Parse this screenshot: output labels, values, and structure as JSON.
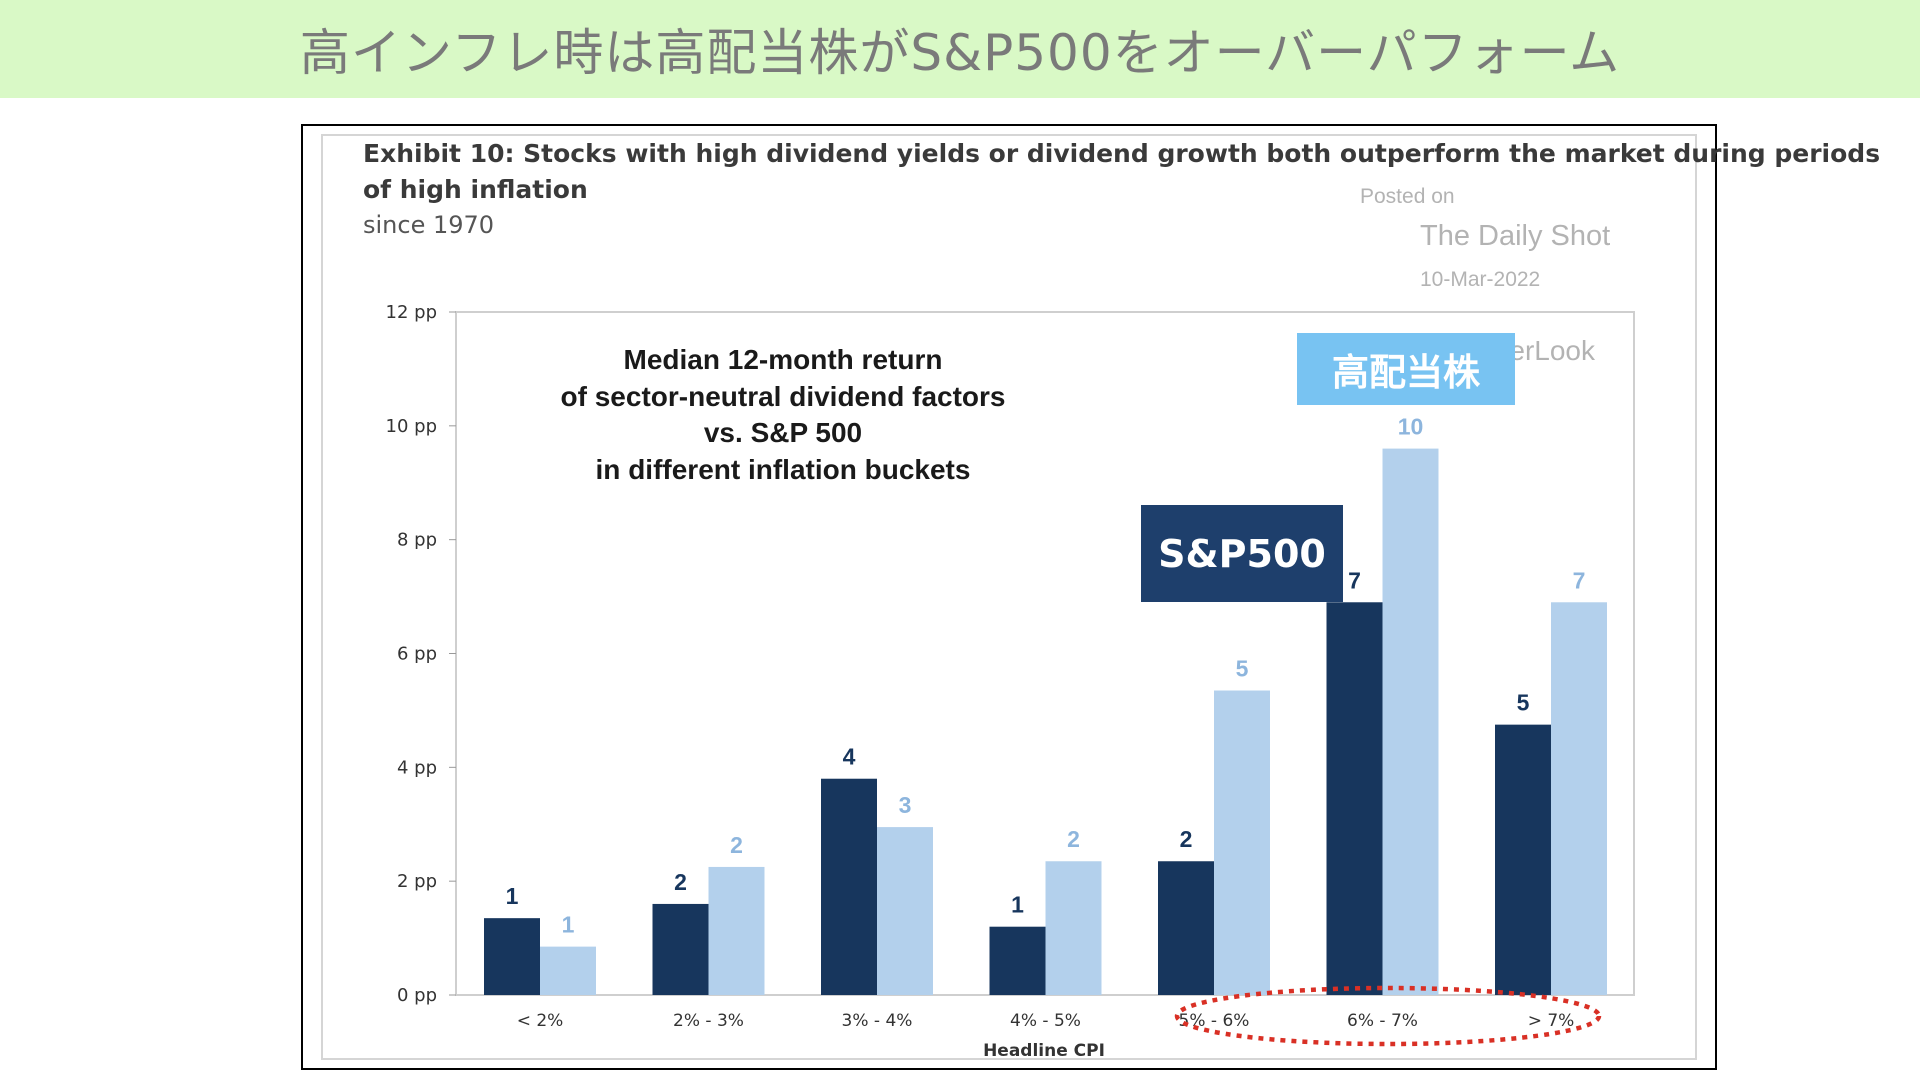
{
  "banner": {
    "text": "高インフレ時は高配当株がS&P500をオーバーパフォーム"
  },
  "exhibit": {
    "title_line1": "Exhibit 10: Stocks with high dividend yields or dividend growth both outperform the market during periods",
    "title_line2": "of high inflation",
    "subtitle": "since 1970"
  },
  "watermark": {
    "posted_on": "Posted on",
    "source": "The Daily Shot",
    "date": "10-Mar-2022",
    "fragment": "erLook"
  },
  "annotations": {
    "high_dividend_tag": "高配当株",
    "sp500_tag": "S&P500",
    "highlight_categories": [
      "5% - 6%",
      "6% - 7%",
      "> 7%"
    ]
  },
  "colors": {
    "series_dark": "#17365d",
    "series_light": "#b3d0ec",
    "label_light": "#8db5dd",
    "highlight_ring": "#d93025",
    "banner_bg": "#d9f9c6",
    "tag_high_dividend": "#78c3f2",
    "tag_sp500": "#1e3f6c"
  },
  "chart_data": {
    "type": "bar",
    "inner_title": [
      "Median 12-month return",
      "of sector-neutral dividend factors",
      "vs. S&P 500",
      "in different inflation buckets"
    ],
    "xlabel": "Headline CPI",
    "ylabel": "",
    "categories": [
      "< 2%",
      "2% - 3%",
      "3% - 4%",
      "4% - 5%",
      "5% - 6%",
      "6% - 7%",
      "> 7%"
    ],
    "ylim": [
      0,
      12
    ],
    "yticks": [
      {
        "value": 0,
        "label": "0 pp"
      },
      {
        "value": 2,
        "label": "2 pp"
      },
      {
        "value": 4,
        "label": "4 pp"
      },
      {
        "value": 6,
        "label": "6 pp"
      },
      {
        "value": 8,
        "label": "8 pp"
      },
      {
        "value": 10,
        "label": "10 pp"
      },
      {
        "value": 12,
        "label": "12 pp"
      }
    ],
    "grid": false,
    "series": [
      {
        "values": [
          1.35,
          1.6,
          3.8,
          1.2,
          2.35,
          6.9,
          4.75
        ],
        "labels": [
          "1",
          "2",
          "4",
          "1",
          "2",
          "7",
          "5"
        ]
      },
      {
        "values": [
          0.85,
          2.25,
          2.95,
          2.35,
          5.35,
          9.6,
          6.9
        ],
        "labels": [
          "1",
          "2",
          "3",
          "2",
          "5",
          "10",
          "7"
        ]
      }
    ]
  }
}
